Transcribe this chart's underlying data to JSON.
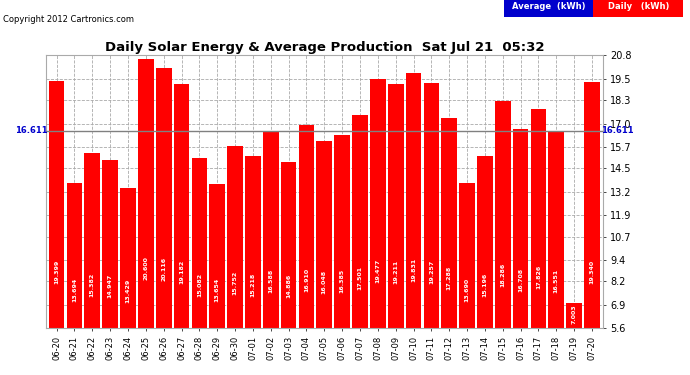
{
  "title": "Daily Solar Energy & Average Production  Sat Jul 21  05:32",
  "copyright": "Copyright 2012 Cartronics.com",
  "categories": [
    "06-20",
    "06-21",
    "06-22",
    "06-23",
    "06-24",
    "06-25",
    "06-26",
    "06-27",
    "06-28",
    "06-29",
    "06-30",
    "07-01",
    "07-02",
    "07-03",
    "07-04",
    "07-05",
    "07-06",
    "07-07",
    "07-08",
    "07-09",
    "07-10",
    "07-11",
    "07-12",
    "07-13",
    "07-14",
    "07-15",
    "07-16",
    "07-17",
    "07-18",
    "07-19",
    "07-20"
  ],
  "values": [
    19.399,
    13.694,
    15.382,
    14.947,
    13.429,
    20.6,
    20.116,
    19.182,
    15.082,
    13.654,
    15.752,
    15.218,
    16.588,
    14.886,
    16.91,
    16.048,
    16.385,
    17.501,
    19.477,
    19.211,
    19.831,
    19.257,
    17.288,
    13.69,
    15.196,
    18.286,
    16.708,
    17.826,
    16.551,
    7.003,
    19.34
  ],
  "average": 16.611,
  "bar_color": "#FF0000",
  "average_line_color": "#808080",
  "fig_background": "#FFFFFF",
  "plot_background": "#FFFFFF",
  "grid_color": "#AAAAAA",
  "title_color": "#000000",
  "copyright_color": "#000000",
  "axis_text_color": "#000000",
  "bar_text_color": "#FFFFFF",
  "ylim_min": 5.6,
  "ylim_max": 20.8,
  "yticks": [
    5.6,
    6.9,
    8.2,
    9.4,
    10.7,
    11.9,
    13.2,
    14.5,
    15.7,
    17.0,
    18.3,
    19.5,
    20.8
  ],
  "avg_label": "16.611",
  "legend_avg_bg": "#0000CC",
  "legend_daily_bg": "#FF0000",
  "legend_text_color": "#FFFFFF"
}
